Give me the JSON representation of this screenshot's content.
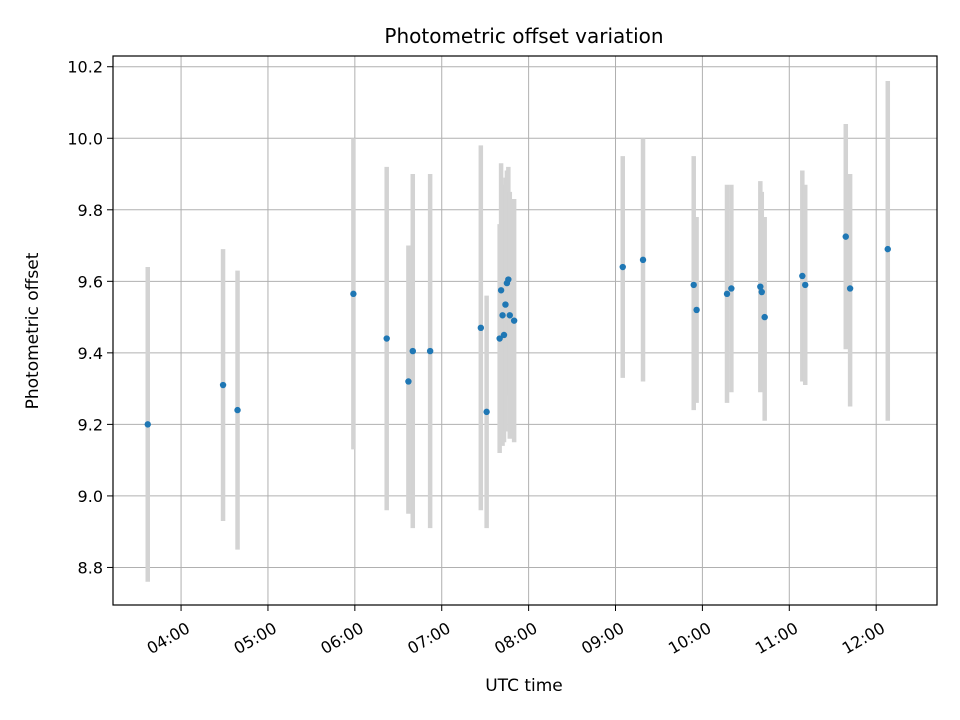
{
  "chart_data": {
    "type": "scatter",
    "title": "Photometric offset variation",
    "xlabel": "UTC time",
    "ylabel": "Photometric offset",
    "x_unit": "UTC time of day (HH:MM)",
    "xlim": [
      "03:13",
      "12:42"
    ],
    "ylim": [
      8.695,
      10.23
    ],
    "x_ticks": [
      "04:00",
      "05:00",
      "06:00",
      "07:00",
      "08:00",
      "09:00",
      "10:00",
      "11:00",
      "12:00"
    ],
    "y_ticks": [
      8.8,
      9.0,
      9.2,
      9.4,
      9.6,
      9.8,
      10.0,
      10.2
    ],
    "y_tick_labels": [
      "8.8",
      "9.0",
      "9.2",
      "9.4",
      "9.6",
      "9.8",
      "10.0",
      "10.2"
    ],
    "grid": true,
    "colors": {
      "marker": "#1f77b4",
      "errorbar": "#d3d3d3",
      "grid": "#b0b0b0",
      "axis": "#000000"
    },
    "points": [
      {
        "time": "03:37",
        "y": 9.2,
        "lo": 8.76,
        "hi": 9.64
      },
      {
        "time": "04:29",
        "y": 9.31,
        "lo": 8.93,
        "hi": 9.69
      },
      {
        "time": "04:39",
        "y": 9.24,
        "lo": 8.85,
        "hi": 9.63
      },
      {
        "time": "05:59",
        "y": 9.565,
        "lo": 9.13,
        "hi": 10.0
      },
      {
        "time": "06:22",
        "y": 9.44,
        "lo": 8.96,
        "hi": 9.92
      },
      {
        "time": "06:37",
        "y": 9.32,
        "lo": 8.95,
        "hi": 9.7
      },
      {
        "time": "06:40",
        "y": 9.405,
        "lo": 8.91,
        "hi": 9.9
      },
      {
        "time": "06:52",
        "y": 9.405,
        "lo": 8.91,
        "hi": 9.9
      },
      {
        "time": "07:27",
        "y": 9.47,
        "lo": 8.96,
        "hi": 9.98
      },
      {
        "time": "07:31",
        "y": 9.235,
        "lo": 8.91,
        "hi": 9.56
      },
      {
        "time": "07:40",
        "y": 9.44,
        "lo": 9.12,
        "hi": 9.76
      },
      {
        "time": "07:41",
        "y": 9.575,
        "lo": 9.22,
        "hi": 9.93
      },
      {
        "time": "07:42",
        "y": 9.505,
        "lo": 9.14,
        "hi": 9.87
      },
      {
        "time": "07:43",
        "y": 9.45,
        "lo": 9.15,
        "hi": 9.75
      },
      {
        "time": "07:44",
        "y": 9.535,
        "lo": 9.18,
        "hi": 9.89
      },
      {
        "time": "07:45",
        "y": 9.595,
        "lo": 9.28,
        "hi": 9.91
      },
      {
        "time": "07:46",
        "y": 9.605,
        "lo": 9.3,
        "hi": 9.92
      },
      {
        "time": "07:47",
        "y": 9.505,
        "lo": 9.16,
        "hi": 9.85
      },
      {
        "time": "07:50",
        "y": 9.49,
        "lo": 9.15,
        "hi": 9.83
      },
      {
        "time": "09:05",
        "y": 9.64,
        "lo": 9.33,
        "hi": 9.95
      },
      {
        "time": "09:19",
        "y": 9.66,
        "lo": 9.32,
        "hi": 10.0
      },
      {
        "time": "09:54",
        "y": 9.59,
        "lo": 9.24,
        "hi": 9.95
      },
      {
        "time": "09:56",
        "y": 9.52,
        "lo": 9.26,
        "hi": 9.78
      },
      {
        "time": "10:17",
        "y": 9.565,
        "lo": 9.26,
        "hi": 9.87
      },
      {
        "time": "10:20",
        "y": 9.58,
        "lo": 9.29,
        "hi": 9.87
      },
      {
        "time": "10:40",
        "y": 9.585,
        "lo": 9.29,
        "hi": 9.88
      },
      {
        "time": "10:41",
        "y": 9.57,
        "lo": 9.3,
        "hi": 9.85
      },
      {
        "time": "10:43",
        "y": 9.5,
        "lo": 9.21,
        "hi": 9.78
      },
      {
        "time": "11:09",
        "y": 9.615,
        "lo": 9.32,
        "hi": 9.91
      },
      {
        "time": "11:11",
        "y": 9.59,
        "lo": 9.31,
        "hi": 9.87
      },
      {
        "time": "11:39",
        "y": 9.725,
        "lo": 9.41,
        "hi": 10.04
      },
      {
        "time": "11:42",
        "y": 9.58,
        "lo": 9.25,
        "hi": 9.9
      },
      {
        "time": "12:08",
        "y": 9.69,
        "lo": 9.21,
        "hi": 10.16
      }
    ]
  }
}
